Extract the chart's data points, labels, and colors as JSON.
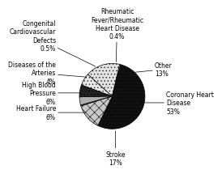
{
  "slices": [
    {
      "label": "Coronary Heart\nDisease\n53%",
      "value": 53,
      "color": "#111111",
      "hatch": "...."
    },
    {
      "label": "Other\n13%",
      "value": 13,
      "color": "#c8c8c8",
      "hatch": "xxx"
    },
    {
      "label": "Rheumatic\nFever/Rheumatic\nHeart Disease\n0.4%",
      "value": 0.4,
      "color": "#888888",
      "hatch": ""
    },
    {
      "label": "Diseases of the\nArteries\n4%",
      "value": 4,
      "color": "#b0b0b0",
      "hatch": ""
    },
    {
      "label": "High Blood\nPressure\n6%",
      "value": 6,
      "color": "#222222",
      "hatch": "...."
    },
    {
      "label": "Heart Failure\n6%",
      "value": 6,
      "color": "#e8e8e8",
      "hatch": "...."
    },
    {
      "label": "Stroke\n17%",
      "value": 17,
      "color": "#e0e0e0",
      "hatch": "...."
    },
    {
      "label": "Congenital\nCardiovascular\nDefects\n0.5%",
      "value": 0.5,
      "color": "#999999",
      "hatch": ""
    }
  ],
  "background_color": "#ffffff",
  "font_size": 5.5,
  "startangle": 75
}
